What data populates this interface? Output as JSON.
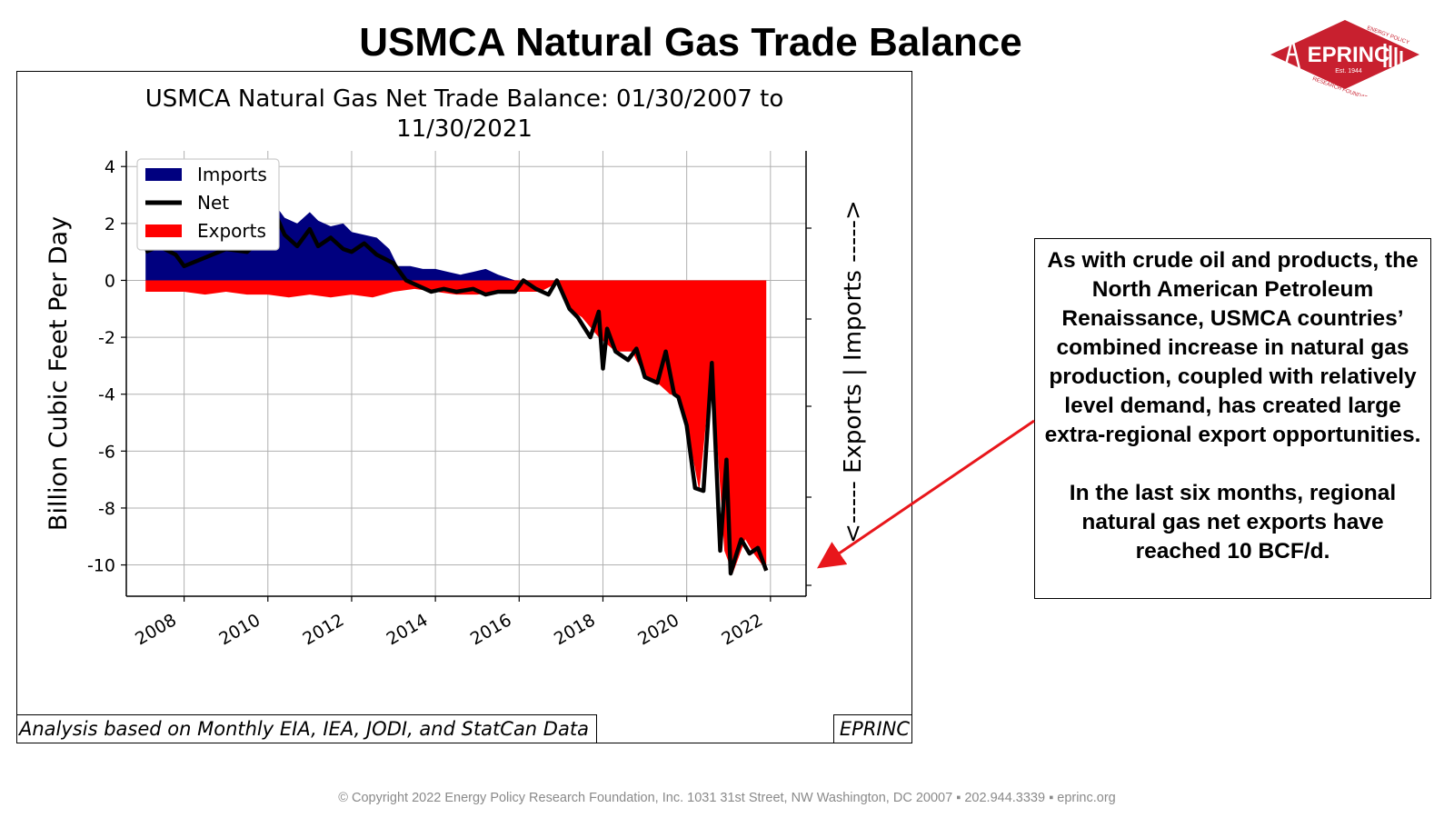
{
  "slide": {
    "title": "USMCA Natural Gas Trade Balance",
    "copyright": "© Copyright 2022 Energy Policy Research Foundation, Inc. 1031 31st Street, NW Washington, DC 20007 ▪ 202.944.3339 ▪ eprinc.org"
  },
  "logo": {
    "name": "EPRINC",
    "est": "Est. 1944",
    "arc_top": "ENERGY POLICY",
    "arc_bottom": "RESEARCH FOUNDATION INC.",
    "color": "#c8202f"
  },
  "note": {
    "paragraph1": "As with crude oil and products, the North American Petroleum Renaissance, USMCA countries’ combined increase in natural gas production, coupled with relatively level demand,  has created large extra-regional export opportunities.",
    "paragraph2": "In the last six months, regional natural gas net exports have reached 10 BCF/d.",
    "arrow_color": "#e8161b"
  },
  "chart_frame": {
    "footer_left": "Analysis based on Monthly EIA, IEA, JODI, and StatCan Data",
    "footer_right": "EPRINC"
  },
  "chart_data": {
    "type": "area",
    "title": "USMCA Natural Gas Net Trade Balance: 01/30/2007 to 11/30/2021",
    "xlabel": "",
    "ylabel": "Billion Cubic Feet Per Day",
    "y2label": "<----- Exports | Imports ----->",
    "xlim": [
      2006.62,
      2022.85
    ],
    "ylim": [
      -11.1,
      4.55
    ],
    "xticks": [
      2008,
      2010,
      2012,
      2014,
      2016,
      2018,
      2020,
      2022
    ],
    "yticks": [
      4,
      2,
      0,
      -2,
      -4,
      -6,
      -8,
      -10
    ],
    "grid": true,
    "legend_position": "upper-left",
    "colors": {
      "imports": "#00007f",
      "exports": "#ff0000",
      "net": "#000000"
    },
    "series": [
      {
        "name": "Imports",
        "x": [
          2007.08,
          2007.5,
          2008.0,
          2008.5,
          2009.0,
          2009.5,
          2010.0,
          2010.1,
          2010.4,
          2010.7,
          2011.0,
          2011.2,
          2011.5,
          2011.8,
          2012.0,
          2012.3,
          2012.6,
          2012.9,
          2013.1,
          2013.4,
          2013.7,
          2014.0,
          2014.3,
          2014.6,
          2014.9,
          2015.2,
          2015.5,
          2015.9
        ],
        "values": [
          1.4,
          1.5,
          1.6,
          1.8,
          2.0,
          2.1,
          2.3,
          2.8,
          2.2,
          2.0,
          2.4,
          2.1,
          1.9,
          2.0,
          1.7,
          1.6,
          1.5,
          1.1,
          0.5,
          0.5,
          0.4,
          0.4,
          0.3,
          0.2,
          0.3,
          0.4,
          0.2,
          0.0
        ]
      },
      {
        "name": "Net",
        "x": [
          2007.08,
          2007.4,
          2007.8,
          2008.0,
          2008.5,
          2009.0,
          2009.5,
          2009.8,
          2010.0,
          2010.1,
          2010.4,
          2010.7,
          2011.0,
          2011.2,
          2011.5,
          2011.8,
          2012.0,
          2012.3,
          2012.6,
          2013.0,
          2013.3,
          2013.6,
          2013.9,
          2014.2,
          2014.5,
          2014.9,
          2015.2,
          2015.5,
          2015.9,
          2016.1,
          2016.4,
          2016.7,
          2016.9,
          2017.2,
          2017.4,
          2017.7,
          2017.9,
          2018.0,
          2018.1,
          2018.3,
          2018.6,
          2018.8,
          2019.0,
          2019.3,
          2019.5,
          2019.7,
          2019.8,
          2020.0,
          2020.2,
          2020.4,
          2020.6,
          2020.8,
          2020.95,
          2021.05,
          2021.15,
          2021.3,
          2021.5,
          2021.7,
          2021.9
        ],
        "values": [
          1.0,
          1.2,
          0.9,
          0.5,
          0.8,
          1.1,
          1.0,
          1.4,
          1.3,
          2.6,
          1.6,
          1.2,
          1.8,
          1.2,
          1.5,
          1.1,
          1.0,
          1.3,
          0.9,
          0.6,
          0.0,
          -0.2,
          -0.4,
          -0.3,
          -0.4,
          -0.3,
          -0.5,
          -0.4,
          -0.4,
          0.0,
          -0.3,
          -0.5,
          0.0,
          -1.0,
          -1.3,
          -2.0,
          -1.1,
          -3.1,
          -1.7,
          -2.5,
          -2.8,
          -2.4,
          -3.4,
          -3.6,
          -2.5,
          -4.0,
          -4.1,
          -5.1,
          -7.3,
          -7.4,
          -2.9,
          -9.5,
          -6.3,
          -10.3,
          -9.8,
          -9.1,
          -9.6,
          -9.4,
          -10.2
        ]
      },
      {
        "name": "Exports",
        "x": [
          2007.08,
          2007.5,
          2008.0,
          2008.5,
          2009.0,
          2009.5,
          2010.0,
          2010.5,
          2011.0,
          2011.5,
          2012.0,
          2012.5,
          2013.0,
          2013.5,
          2014.0,
          2014.5,
          2015.0,
          2015.5,
          2016.0,
          2016.5,
          2016.9,
          2017.2,
          2017.5,
          2017.9,
          2018.3,
          2018.7,
          2019.0,
          2019.3,
          2019.6,
          2019.8,
          2020.0,
          2020.3,
          2020.6,
          2020.9,
          2021.1,
          2021.4,
          2021.6,
          2021.9
        ],
        "values": [
          -0.4,
          -0.4,
          -0.4,
          -0.5,
          -0.4,
          -0.5,
          -0.5,
          -0.6,
          -0.5,
          -0.6,
          -0.5,
          -0.6,
          -0.4,
          -0.3,
          -0.4,
          -0.5,
          -0.5,
          -0.4,
          -0.4,
          -0.4,
          -0.1,
          -1.0,
          -1.3,
          -2.0,
          -2.5,
          -2.5,
          -3.4,
          -3.6,
          -4.0,
          -4.1,
          -5.1,
          -7.4,
          -2.9,
          -9.5,
          -10.3,
          -9.1,
          -9.6,
          -10.2
        ]
      }
    ]
  }
}
